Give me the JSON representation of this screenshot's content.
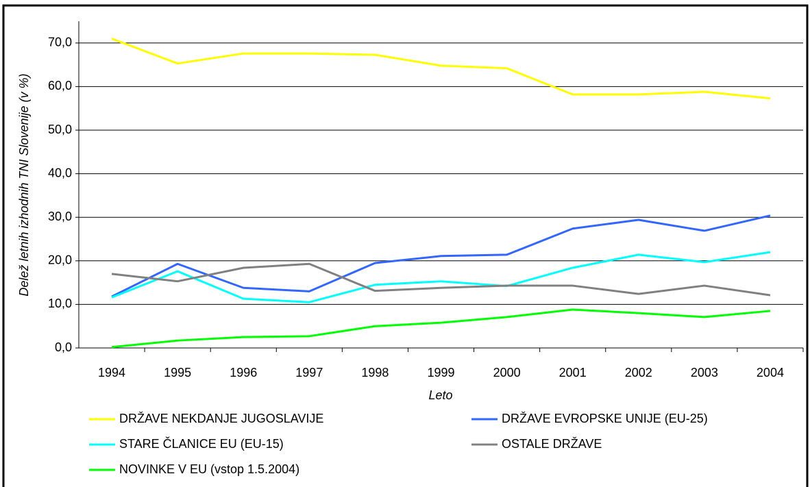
{
  "chart_data": {
    "type": "line",
    "x_label": "Leto",
    "y_label": "Delež letnih izhodnih TNI Slovenije (v %)",
    "categories": [
      "1994",
      "1995",
      "1996",
      "1997",
      "1998",
      "1999",
      "2000",
      "2001",
      "2002",
      "2003",
      "2004"
    ],
    "ylim": [
      0,
      75
    ],
    "yticks": [
      {
        "value": 0,
        "label": "0,0"
      },
      {
        "value": 10,
        "label": "10,0"
      },
      {
        "value": 20,
        "label": "20,0"
      },
      {
        "value": 30,
        "label": "30,0"
      },
      {
        "value": 40,
        "label": "40,0"
      },
      {
        "value": 50,
        "label": "50,0"
      },
      {
        "value": 60,
        "label": "60,0"
      },
      {
        "value": 70,
        "label": "70,0"
      }
    ],
    "grid": true,
    "legend": "bottom",
    "series": [
      {
        "name": "DRŽAVE NEKDANJE JUGOSLAVIJE",
        "color": "#ffff00",
        "values": [
          71.0,
          65.3,
          67.6,
          67.6,
          67.3,
          64.8,
          64.2,
          58.2,
          58.2,
          58.8,
          57.3
        ]
      },
      {
        "name": "DRŽAVE EVROPSKE UNIJE (EU-25)",
        "color": "#3366ff",
        "values": [
          11.8,
          19.3,
          13.8,
          13.0,
          19.5,
          21.1,
          21.4,
          27.4,
          29.4,
          26.9,
          30.4
        ]
      },
      {
        "name": "STARE ČLANICE EU (EU-15)",
        "color": "#00ffff",
        "values": [
          11.6,
          17.6,
          11.3,
          10.5,
          14.5,
          15.3,
          14.2,
          18.4,
          21.4,
          19.7,
          22.0
        ]
      },
      {
        "name": "OSTALE DRŽAVE",
        "color": "#808080",
        "values": [
          17.0,
          15.3,
          18.4,
          19.3,
          13.1,
          13.8,
          14.3,
          14.3,
          12.4,
          14.3,
          12.1
        ]
      },
      {
        "name": "NOVINKE V EU (vstop 1.5.2004)",
        "color": "#00ff00",
        "values": [
          0.2,
          1.7,
          2.5,
          2.7,
          5.0,
          5.8,
          7.1,
          8.8,
          8.0,
          7.1,
          8.5
        ]
      }
    ]
  }
}
